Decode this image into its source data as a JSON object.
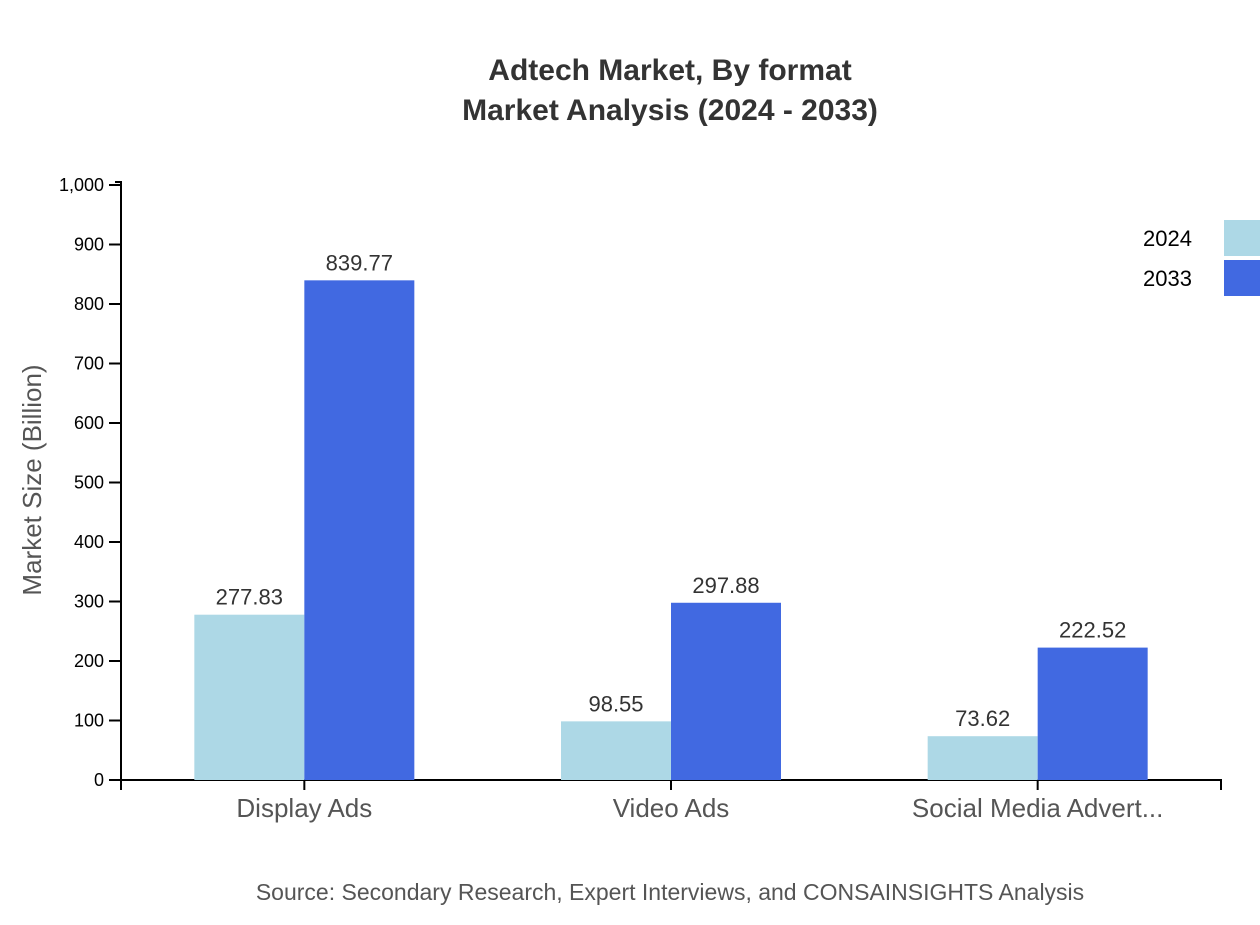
{
  "chart_data": {
    "type": "bar",
    "title": "Adtech Market, By format",
    "subtitle": "Market Analysis (2024 - 2033)",
    "xlabel": "",
    "ylabel": "Market Size (Billion)",
    "ylim": [
      0,
      1000
    ],
    "yticks": [
      "0",
      "100",
      "200",
      "300",
      "400",
      "500",
      "600",
      "700",
      "800",
      "900",
      "1,000"
    ],
    "categories": [
      "Display Ads",
      "Video Ads",
      "Social Media Advert..."
    ],
    "series": [
      {
        "name": "2024",
        "color": "#add8e6",
        "values": [
          277.83,
          98.55,
          73.62
        ]
      },
      {
        "name": "2033",
        "color": "#4169e1",
        "values": [
          839.77,
          297.88,
          222.52
        ]
      }
    ],
    "grid": false,
    "legend": "top-right",
    "source": "Source: Secondary Research, Expert Interviews, and CONSAINSIGHTS Analysis"
  }
}
